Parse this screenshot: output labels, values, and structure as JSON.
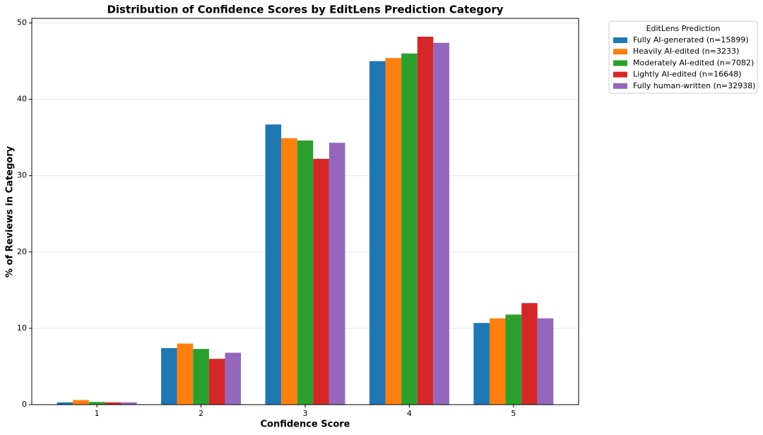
{
  "chart_data": {
    "type": "bar",
    "title": "Distribution of Confidence Scores by EditLens Prediction Category",
    "x_label": "Confidence Score",
    "y_label": "% of Reviews in Category",
    "categories": [
      "1",
      "2",
      "3",
      "4",
      "5"
    ],
    "legend_title": "EditLens Prediction",
    "series": [
      {
        "name": "Fully AI-generated (n=15899)",
        "color": "#1f77b4",
        "values": [
          0.3,
          7.4,
          36.7,
          45.0,
          10.7
        ]
      },
      {
        "name": "Heavily AI-edited (n=3233)",
        "color": "#ff7f0e",
        "values": [
          0.6,
          8.0,
          34.9,
          45.4,
          11.3
        ]
      },
      {
        "name": "Moderately AI-edited (n=7082)",
        "color": "#2ca02c",
        "values": [
          0.35,
          7.3,
          34.6,
          46.0,
          11.8
        ]
      },
      {
        "name": "Lightly AI-edited (n=16648)",
        "color": "#d62728",
        "values": [
          0.3,
          6.0,
          32.2,
          48.2,
          13.3
        ]
      },
      {
        "name": "Fully human-written (n=32938)",
        "color": "#9467bd",
        "values": [
          0.3,
          6.8,
          34.3,
          47.4,
          11.3
        ]
      }
    ],
    "ylim": [
      0,
      50.6
    ],
    "yticks": [
      0,
      10,
      20,
      30,
      40,
      50
    ],
    "grid": true,
    "legend_position": "outside-right"
  }
}
